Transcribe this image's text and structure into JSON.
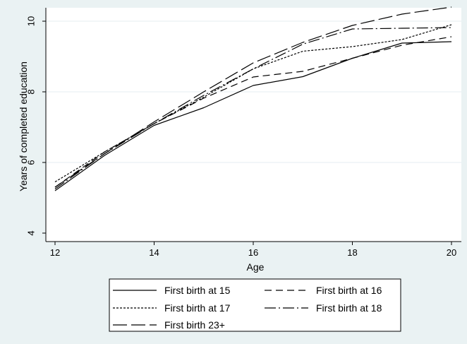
{
  "chart_data": {
    "type": "line",
    "x": [
      12,
      13,
      14,
      15,
      16,
      17,
      18,
      19,
      20
    ],
    "series": [
      {
        "name": "First birth at 15",
        "values": [
          5.2,
          6.2,
          7.05,
          7.55,
          8.18,
          8.43,
          8.95,
          9.38,
          9.42
        ]
      },
      {
        "name": "First birth at 16",
        "values": [
          5.3,
          6.3,
          7.1,
          7.82,
          8.42,
          8.58,
          8.95,
          9.32,
          9.56
        ]
      },
      {
        "name": "First birth at 17",
        "values": [
          5.45,
          6.3,
          7.1,
          7.85,
          8.65,
          9.15,
          9.28,
          9.48,
          9.9
        ]
      },
      {
        "name": "First birth at 18",
        "values": [
          5.25,
          6.25,
          7.1,
          7.9,
          8.65,
          9.35,
          9.78,
          9.8,
          9.82
        ]
      },
      {
        "name": "First birth 23+",
        "values": [
          5.3,
          6.25,
          7.15,
          8.0,
          8.82,
          9.4,
          9.88,
          10.2,
          10.4
        ]
      }
    ],
    "xlabel": "Age",
    "ylabel": "Years of completed education",
    "xlim": [
      12,
      20
    ],
    "ylim": [
      4,
      10
    ],
    "xticks": [
      12,
      14,
      16,
      18,
      20
    ],
    "yticks": [
      4,
      6,
      8,
      10
    ],
    "grid": "horizontal",
    "legend_position": "bottom",
    "line_color": "#000000",
    "plot_background": "#ffffff",
    "figure_background": "#eaf2f3"
  }
}
